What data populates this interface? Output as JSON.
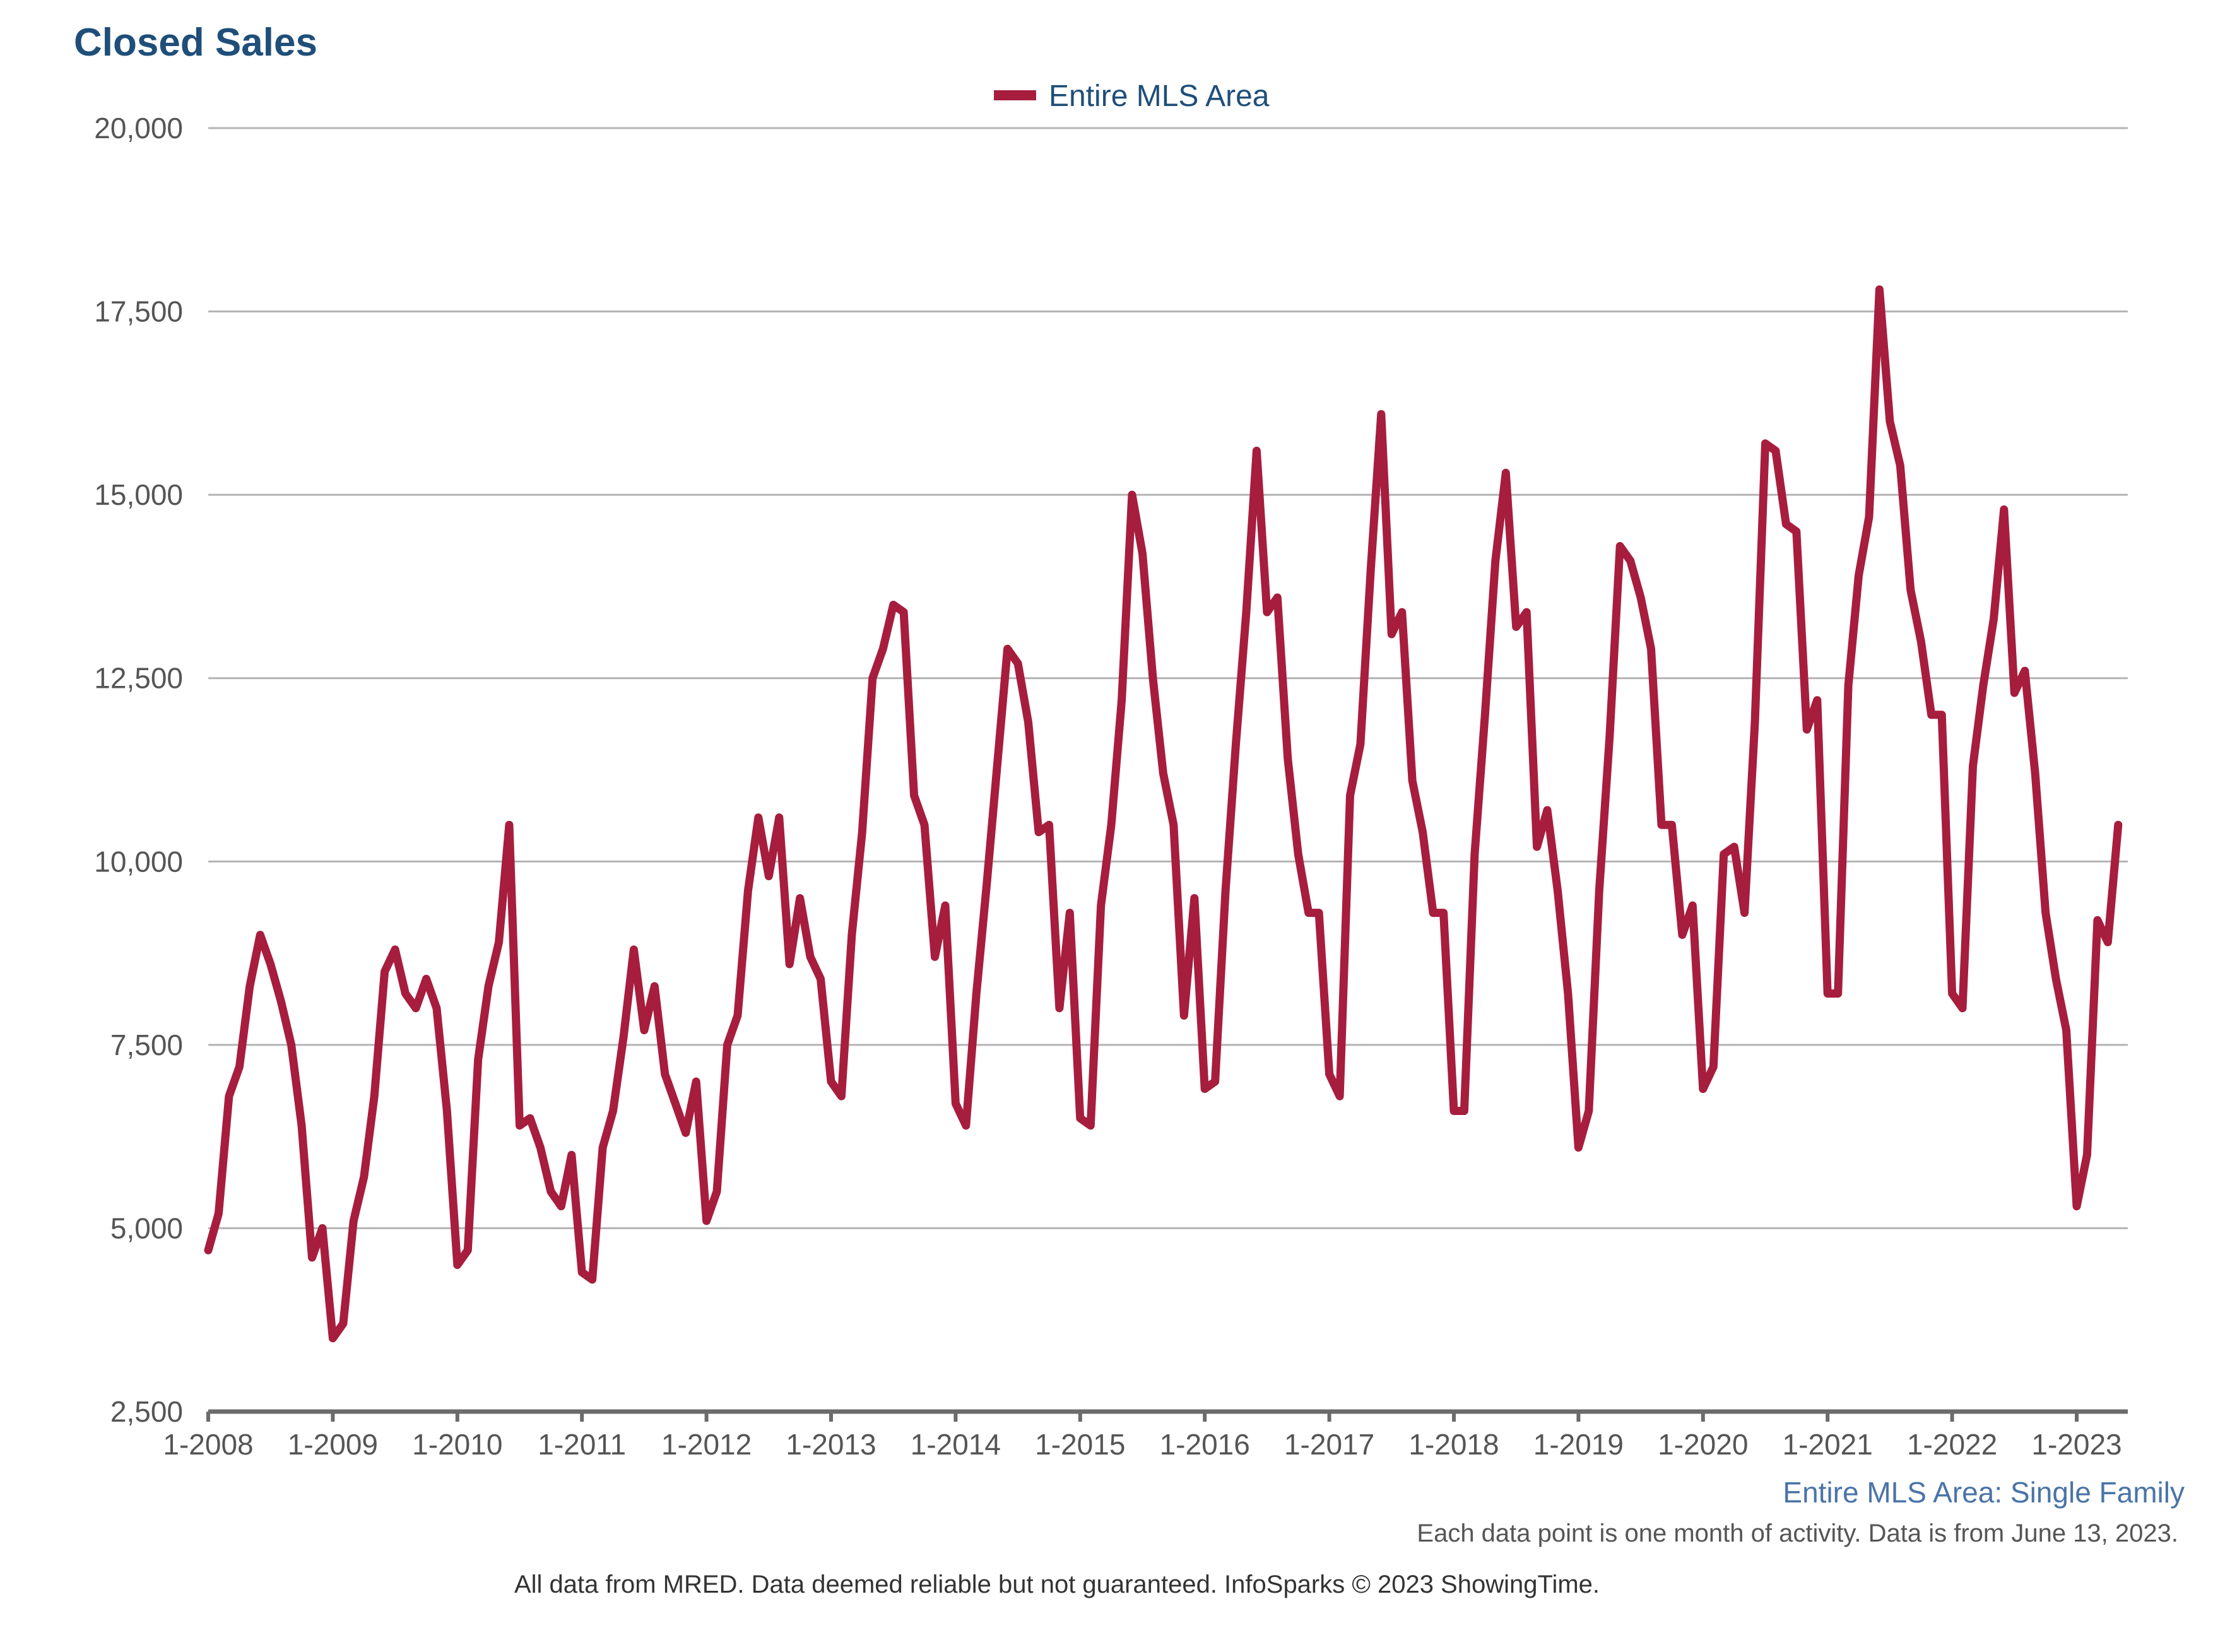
{
  "header": {
    "title": "Closed Sales"
  },
  "legend": {
    "label": "Entire MLS Area",
    "position": "top-center"
  },
  "footer": {
    "subtitle": "Entire MLS Area: Single Family",
    "note": "Each data point is one month of activity. Data is from June 13, 2023.",
    "source": "All data from MRED. Data deemed reliable but not guaranteed. InfoSparks © 2023 ShowingTime."
  },
  "colors": {
    "series": "#a71d3d",
    "title": "#1f4e79",
    "subtitle": "#4a74a8",
    "grid": "#b3b3b3",
    "axis": "#6b6b6b",
    "tick_text": "#555555"
  },
  "chart_data": {
    "type": "line",
    "title": "Closed Sales",
    "xlabel": "",
    "ylabel": "",
    "ylim": [
      2500,
      20000
    ],
    "yticks": [
      2500,
      5000,
      7500,
      10000,
      12500,
      15000,
      17500,
      20000
    ],
    "ytick_labels": [
      "2,500",
      "5,000",
      "7,500",
      "10,000",
      "12,500",
      "15,000",
      "17,500",
      "20,000"
    ],
    "xticks": [
      "1-2008",
      "1-2009",
      "1-2010",
      "1-2011",
      "1-2012",
      "1-2013",
      "1-2014",
      "1-2015",
      "1-2016",
      "1-2017",
      "1-2018",
      "1-2019",
      "1-2020",
      "1-2021",
      "1-2022",
      "1-2023"
    ],
    "x_start": "2008-01",
    "x_end": "2023-05",
    "grid": true,
    "series": [
      {
        "name": "Entire MLS Area",
        "color": "#a71d3d",
        "values": [
          4700,
          5200,
          6800,
          7200,
          8300,
          9000,
          8600,
          8100,
          7500,
          6400,
          4600,
          5000,
          3500,
          3700,
          5100,
          5700,
          6800,
          8500,
          8800,
          8200,
          8000,
          8400,
          8000,
          6600,
          4500,
          4700,
          7300,
          8300,
          8900,
          10500,
          6400,
          6500,
          6100,
          5500,
          5300,
          6000,
          4400,
          4300,
          6100,
          6600,
          7600,
          8800,
          7700,
          8300,
          7100,
          6700,
          6300,
          7000,
          5100,
          5500,
          7500,
          7900,
          9600,
          10600,
          9800,
          10600,
          8600,
          9500,
          8700,
          8400,
          7000,
          6800,
          9000,
          10400,
          12500,
          12900,
          13500,
          13400,
          10900,
          10500,
          8700,
          9400,
          6700,
          6400,
          8200,
          9700,
          11300,
          12900,
          12700,
          11900,
          10400,
          10500,
          8000,
          9300,
          6500,
          6400,
          9400,
          10500,
          12200,
          15000,
          14200,
          12500,
          11200,
          10500,
          7900,
          9500,
          6900,
          7000,
          9600,
          11600,
          13400,
          15600,
          13400,
          13600,
          11400,
          10100,
          9300,
          9300,
          7100,
          6800,
          10900,
          11600,
          14000,
          16100,
          13100,
          13400,
          11100,
          10400,
          9300,
          9300,
          6600,
          6600,
          10100,
          12000,
          14100,
          15300,
          13200,
          13400,
          10200,
          10700,
          9600,
          8200,
          6100,
          6600,
          9600,
          11700,
          14300,
          14100,
          13600,
          12900,
          10500,
          10500,
          9000,
          9400,
          6900,
          7200,
          10100,
          10200,
          9300,
          11900,
          15700,
          15600,
          14600,
          14500,
          11800,
          12200,
          8200,
          8200,
          12400,
          13900,
          14700,
          17800,
          16000,
          15400,
          13700,
          13000,
          12000,
          12000,
          8200,
          8000,
          11300,
          12400,
          13300,
          14800,
          12300,
          12600,
          11200,
          9300,
          8400,
          7700,
          5300,
          6000,
          9200,
          8900,
          10500
        ]
      }
    ]
  }
}
